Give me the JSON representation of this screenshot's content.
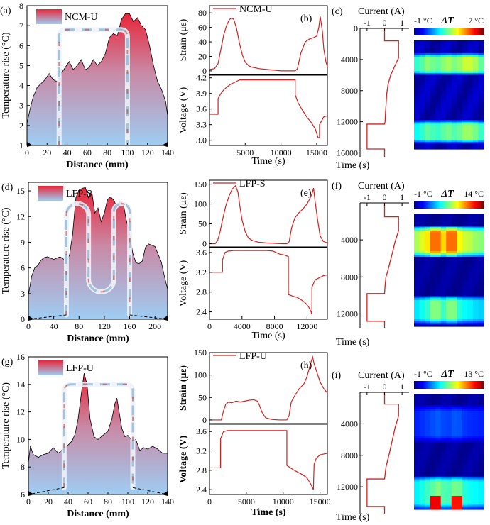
{
  "chart_data": [
    {
      "id": "a",
      "type": "area",
      "panel_label": "(a)",
      "legend": "NCM-U",
      "xlabel": "Distance (mm)",
      "ylabel": "Temperature rise (°C)",
      "xlim": [
        0,
        140
      ],
      "ylim": [
        1,
        8
      ],
      "xticks": [
        0,
        20,
        40,
        60,
        80,
        100,
        120,
        140
      ],
      "yticks": [
        1,
        2,
        3,
        4,
        5,
        6,
        7,
        8
      ],
      "x": [
        0,
        3,
        6,
        10,
        14,
        18,
        22,
        26,
        30,
        34,
        38,
        42,
        46,
        50,
        54,
        58,
        62,
        66,
        70,
        74,
        78,
        82,
        86,
        90,
        94,
        98,
        102,
        106,
        110,
        114,
        118,
        122,
        126,
        130,
        134,
        138,
        140
      ],
      "y": [
        2.1,
        2.8,
        3.4,
        3.9,
        4.1,
        4.3,
        4.6,
        4.3,
        4.2,
        4.6,
        4.9,
        5.2,
        4.8,
        5.0,
        5.3,
        4.8,
        4.9,
        5.3,
        5.0,
        5.2,
        5.6,
        6.4,
        6.6,
        6.5,
        7.3,
        7.6,
        7.6,
        7.2,
        7.4,
        7.0,
        6.8,
        6.0,
        5.0,
        4.2,
        3.8,
        3.2,
        2.5
      ],
      "tab_x": [
        32,
        100
      ],
      "tab_top": 6.8,
      "tab_bottom": 1.0
    },
    {
      "id": "b_strain",
      "type": "line",
      "panel_label": "(b)",
      "legend": "NCM-U",
      "ylabel": "Strain (με)",
      "xlabel": "Time (s)",
      "xlim": [
        0,
        16500
      ],
      "ylim": [
        -5,
        90
      ],
      "xticks": [
        5000,
        10000,
        15000
      ],
      "yticks": [
        0,
        20,
        40,
        60,
        80
      ],
      "x": [
        0,
        700,
        1200,
        1600,
        2000,
        2400,
        2800,
        3100,
        3400,
        3800,
        4200,
        4600,
        5000,
        5500,
        6000,
        7000,
        8000,
        9000,
        10000,
        11000,
        12000,
        12300,
        12800,
        13400,
        14000,
        14600,
        15000,
        15300,
        15500,
        15800,
        16000,
        16300,
        16500
      ],
      "y": [
        2,
        3,
        10,
        30,
        50,
        63,
        71,
        73,
        71,
        58,
        38,
        22,
        12,
        7,
        5,
        3,
        2,
        1,
        0,
        0,
        0,
        3,
        25,
        40,
        44,
        46,
        48,
        60,
        75,
        55,
        30,
        12,
        6
      ]
    },
    {
      "id": "b_voltage",
      "type": "line",
      "ylabel": "Voltage (V)",
      "xlabel": "Time (s)",
      "xlim": [
        0,
        16500
      ],
      "ylim": [
        2.9,
        4.25
      ],
      "xticks": [
        5000,
        10000,
        15000
      ],
      "xtick_labels": [
        "5000",
        "10000",
        "15000"
      ],
      "yticks": [
        3.0,
        3.3,
        3.6,
        3.9,
        4.2
      ],
      "x": [
        0,
        1200,
        1200,
        1600,
        2000,
        2500,
        3000,
        3500,
        4200,
        5000,
        6000,
        8000,
        10000,
        11800,
        12000,
        12000,
        12400,
        13000,
        13600,
        14200,
        14800,
        15200,
        15400,
        15400,
        16000,
        16500
      ],
      "y": [
        3.5,
        3.5,
        3.8,
        3.9,
        3.97,
        4.03,
        4.08,
        4.11,
        4.16,
        4.16,
        4.16,
        4.16,
        4.16,
        4.16,
        4.16,
        3.87,
        3.72,
        3.58,
        3.45,
        3.35,
        3.22,
        3.05,
        3.05,
        3.3,
        3.45,
        3.47
      ]
    },
    {
      "id": "c_current",
      "type": "line",
      "panel_label": "(c)",
      "title": "Current (A)",
      "xlim": [
        -1.4,
        1.4
      ],
      "xticks": [
        -1,
        0,
        1
      ],
      "ylim": [
        0,
        16500
      ],
      "yticks": [
        0,
        4000,
        8000,
        12000,
        16000
      ],
      "ylabel": "Time (s)",
      "x": [
        0,
        0,
        0.8,
        0.8,
        0.55,
        0.35,
        0.2,
        0.12,
        0.08,
        0.05,
        0.03,
        0,
        0,
        -1,
        -1,
        0,
        0
      ],
      "y": [
        0,
        1600,
        1600,
        3800,
        5000,
        6000,
        7200,
        8500,
        10000,
        11000,
        12000,
        12300,
        12300,
        12300,
        15500,
        15500,
        16500
      ]
    },
    {
      "id": "c_heatmap",
      "type": "heatmap",
      "title": "ΔT",
      "cbar_min": "-1 °C",
      "cbar_max": "7 °C",
      "vmin": -1,
      "vmax": 7,
      "y_range": [
        0,
        16500
      ],
      "bands": [
        {
          "t0": 2000,
          "t1": 5200,
          "v": 3.6
        },
        {
          "t0": 12200,
          "t1": 15600,
          "v": 3.2
        }
      ],
      "x_profile": [
        0.4,
        0.55,
        0.75,
        0.65,
        0.6,
        0.75,
        0.85,
        0.7,
        0.8,
        1.0,
        1.0,
        0.85,
        0.6
      ]
    },
    {
      "id": "d",
      "type": "area",
      "panel_label": "(d)",
      "legend": "LFP-S",
      "xlabel": "Distance (mm)",
      "ylabel": "Temperature rise (°C)",
      "xlim": [
        0,
        220
      ],
      "ylim": [
        0,
        16
      ],
      "xticks": [
        0,
        40,
        80,
        120,
        160,
        200
      ],
      "yticks": [
        0,
        3,
        6,
        9,
        12,
        15
      ],
      "x": [
        0,
        5,
        10,
        15,
        20,
        25,
        30,
        40,
        50,
        60,
        65,
        70,
        75,
        80,
        85,
        90,
        95,
        100,
        105,
        110,
        115,
        120,
        125,
        130,
        135,
        140,
        145,
        150,
        155,
        160,
        165,
        170,
        175,
        180,
        185,
        190,
        200,
        210,
        215,
        220
      ],
      "y": [
        2.8,
        5.0,
        6.0,
        6.3,
        6.9,
        7.2,
        7.3,
        7.0,
        7.3,
        6.8,
        7.5,
        10.0,
        14.2,
        15.1,
        15.3,
        15.4,
        14.2,
        15.0,
        12.4,
        13.0,
        11.4,
        12.4,
        14.0,
        14.3,
        13.9,
        13.1,
        13.8,
        13.5,
        11.5,
        10.0,
        7.7,
        6.6,
        6.5,
        6.8,
        8.4,
        8.8,
        8.5,
        6.7,
        5.0,
        3.5
      ],
      "tab_x": [
        60,
        95,
        135,
        160
      ],
      "tab_top": 13.5,
      "tab_bottom": 0.5
    },
    {
      "id": "e_strain",
      "type": "line",
      "panel_label": "(e)",
      "legend": "LFP-S",
      "ylabel": "Strain (με)",
      "xlabel": "Time (s)",
      "xlim": [
        0,
        14500
      ],
      "ylim": [
        -8,
        160
      ],
      "xticks": [
        0,
        4000,
        8000,
        12000
      ],
      "yticks": [
        0,
        50,
        100,
        150
      ],
      "x": [
        0,
        700,
        1000,
        1300,
        1600,
        2000,
        2400,
        2800,
        3200,
        3500,
        3700,
        4000,
        4400,
        4800,
        5300,
        6000,
        7000,
        8000,
        9000,
        9500,
        9800,
        10100,
        10500,
        11000,
        11500,
        12000,
        12300,
        12600,
        12800,
        13000,
        13300,
        13600,
        14000,
        14500
      ],
      "y": [
        0,
        0,
        8,
        30,
        60,
        95,
        120,
        138,
        146,
        130,
        100,
        60,
        30,
        14,
        8,
        4,
        2,
        1,
        0,
        0,
        5,
        40,
        65,
        78,
        88,
        100,
        112,
        125,
        140,
        105,
        60,
        20,
        6,
        2
      ]
    },
    {
      "id": "e_voltage",
      "type": "line",
      "ylabel": "Voltage (V)",
      "xlabel": "Time (s)",
      "xlim": [
        0,
        14500
      ],
      "ylim": [
        2.25,
        3.7
      ],
      "xticks": [
        0,
        4000,
        8000,
        12000
      ],
      "yticks": [
        2.4,
        2.8,
        3.2,
        3.6
      ],
      "x": [
        0,
        1600,
        1600,
        1900,
        2300,
        3000,
        5000,
        7000,
        7800,
        8200,
        8600,
        9200,
        9700,
        9700,
        10200,
        10800,
        11400,
        11800,
        12200,
        12500,
        12600,
        12600,
        13000,
        14000,
        14500
      ],
      "y": [
        3.2,
        3.2,
        3.45,
        3.6,
        3.63,
        3.64,
        3.64,
        3.64,
        3.63,
        3.6,
        3.57,
        3.55,
        3.52,
        2.75,
        2.72,
        2.69,
        2.63,
        2.58,
        2.5,
        2.4,
        2.35,
        2.9,
        3.05,
        3.13,
        3.15
      ]
    },
    {
      "id": "f_current",
      "type": "line",
      "panel_label": "(f)",
      "title": "Current (A)",
      "xlim": [
        -1.4,
        1.4
      ],
      "xticks": [
        -1,
        0,
        1
      ],
      "ylim": [
        0,
        13500
      ],
      "yticks": [
        4000,
        8000,
        12000
      ],
      "ylabel": "Time (s)",
      "x": [
        0,
        0,
        0.8,
        0.8,
        0.6,
        0.45,
        0.3,
        0.18,
        0.08,
        0.03,
        0,
        0,
        -1,
        -1,
        0,
        0
      ],
      "y": [
        0,
        1500,
        1500,
        3000,
        4200,
        5400,
        6500,
        7400,
        8000,
        9000,
        9800,
        9800,
        9800,
        12800,
        12800,
        13500
      ]
    },
    {
      "id": "f_heatmap",
      "type": "heatmap",
      "title": "ΔT",
      "cbar_min": "-1 °C",
      "cbar_max": "14 °C",
      "vmin": -1,
      "vmax": 14,
      "y_range": [
        0,
        13500
      ],
      "bands": [
        {
          "t0": 1500,
          "t1": 5200,
          "v": 10.5
        },
        {
          "t0": 9800,
          "t1": 13200,
          "v": 6.5
        }
      ],
      "x_profile": [
        0.35,
        0.5,
        0.65,
        1.0,
        1.0,
        0.7,
        1.0,
        1.0,
        0.6,
        0.45,
        0.4,
        0.3,
        0.25
      ]
    },
    {
      "id": "g",
      "type": "area",
      "panel_label": "(g)",
      "legend": "LFP-U",
      "xlabel": "Distance (mm)",
      "ylabel": "Temperature rise (°C)",
      "xlim": [
        0,
        140
      ],
      "ylim": [
        6,
        16
      ],
      "xticks": [
        0,
        20,
        40,
        60,
        80,
        100,
        120,
        140
      ],
      "yticks": [
        6,
        8,
        10,
        12,
        14,
        16
      ],
      "x": [
        0,
        2,
        5,
        10,
        15,
        20,
        25,
        30,
        35,
        40,
        44,
        47,
        50,
        53,
        56,
        59,
        62,
        66,
        70,
        75,
        80,
        84,
        87,
        89,
        91,
        94,
        97,
        100,
        104,
        108,
        112,
        116,
        120,
        125,
        130,
        135,
        140
      ],
      "y": [
        8.3,
        9.5,
        8.9,
        8.7,
        8.9,
        9.0,
        9.4,
        9.0,
        9.3,
        9.6,
        9.9,
        10.4,
        11.5,
        13.2,
        14.8,
        14.0,
        11.5,
        10.2,
        10.0,
        10.3,
        10.6,
        11.5,
        12.6,
        13.0,
        12.1,
        10.8,
        10.2,
        10.3,
        9.9,
        10.0,
        9.2,
        9.4,
        9.3,
        9.5,
        9.3,
        9.0,
        9.0
      ],
      "tab_x": [
        36,
        105
      ],
      "tab_top": 14.0,
      "tab_bottom": 6.5
    },
    {
      "id": "h_strain",
      "type": "line",
      "panel_label": "(h)",
      "legend": "LFP-U",
      "ylabel": "Strain (με)",
      "xlabel": "Time (s)",
      "xlim": [
        0,
        16000
      ],
      "ylim": [
        -8,
        150
      ],
      "xticks": [
        0,
        5000,
        10000,
        15000
      ],
      "yticks": [
        0,
        50,
        100,
        150
      ],
      "x": [
        0,
        1600,
        1900,
        2200,
        2600,
        3000,
        3600,
        4200,
        4800,
        5400,
        6000,
        6500,
        6800,
        7100,
        7600,
        8500,
        9500,
        10500,
        10800,
        11100,
        11600,
        12200,
        12800,
        13200,
        13500,
        13800,
        14000,
        14200,
        14500,
        15000,
        15500,
        16000
      ],
      "y": [
        0,
        0,
        20,
        35,
        40,
        38,
        42,
        40,
        42,
        44,
        45,
        42,
        32,
        18,
        5,
        1,
        0,
        0,
        10,
        40,
        55,
        70,
        80,
        95,
        112,
        130,
        140,
        125,
        110,
        85,
        70,
        60
      ]
    },
    {
      "id": "h_voltage",
      "type": "line",
      "ylabel": "Voltage (V)",
      "xlabel": "Time (s)",
      "xlim": [
        0,
        16000
      ],
      "ylim": [
        2.3,
        3.75
      ],
      "xticks": [
        0,
        5000,
        10000,
        15000
      ],
      "yticks": [
        2.4,
        2.8,
        3.2,
        3.6
      ],
      "x": [
        0,
        1500,
        1500,
        1900,
        2500,
        4000,
        6000,
        8000,
        9000,
        10500,
        10500,
        11500,
        12500,
        13200,
        13800,
        14100,
        14200,
        14500,
        15000,
        16000
      ],
      "y": [
        2.85,
        2.85,
        3.45,
        3.6,
        3.62,
        3.62,
        3.62,
        3.62,
        3.62,
        3.62,
        2.9,
        2.8,
        2.72,
        2.65,
        2.5,
        2.4,
        2.92,
        3.05,
        3.12,
        3.15
      ]
    },
    {
      "id": "i_current",
      "type": "line",
      "panel_label": "(i)",
      "title": "Current (A)",
      "xlim": [
        -1.4,
        1.4
      ],
      "xticks": [
        -1,
        0,
        1
      ],
      "ylim": [
        0,
        15500
      ],
      "yticks": [
        4000,
        8000,
        12000
      ],
      "ylabel": "Time (s)",
      "x": [
        0,
        0,
        0.8,
        0.8,
        0.6,
        0.45,
        0.3,
        0.18,
        0.08,
        0.03,
        0,
        0,
        -1,
        -1,
        0,
        0
      ],
      "y": [
        0,
        1500,
        1500,
        3000,
        4500,
        6000,
        7500,
        8600,
        9500,
        10500,
        11000,
        11000,
        11000,
        14500,
        14500,
        15500
      ]
    },
    {
      "id": "i_heatmap",
      "type": "heatmap",
      "title": "ΔT",
      "cbar_min": "-1 °C",
      "cbar_max": "13 °C",
      "vmin": -1,
      "vmax": 13,
      "y_range": [
        0,
        15500
      ],
      "bands": [
        {
          "t0": 1500,
          "t1": 6500,
          "v": 2.0
        },
        {
          "t0": 11000,
          "t1": 15500,
          "v": 6.0
        }
      ],
      "x_profile": [
        0.4,
        0.55,
        0.7,
        0.85,
        1.0,
        0.8,
        0.75,
        0.95,
        0.9,
        0.6,
        0.5,
        0.45,
        0.4
      ],
      "hot_spots": [
        {
          "t0": 13800,
          "t1": 15500,
          "xi": [
            3,
            4
          ],
          "v": 11.5
        },
        {
          "t0": 13800,
          "t1": 15500,
          "xi": [
            7,
            8
          ],
          "v": 11
        }
      ]
    }
  ]
}
